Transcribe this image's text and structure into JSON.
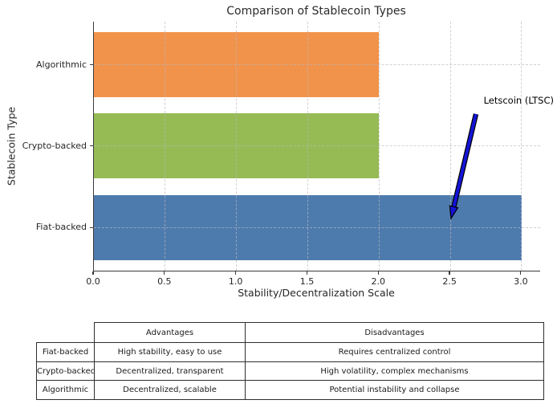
{
  "chart_data": {
    "type": "bar",
    "orientation": "horizontal",
    "title": "Comparison of Stablecoin Types",
    "xlabel": "Stability/Decentralization Scale",
    "ylabel": "Stablecoin Type",
    "categories": [
      "Algorithmic",
      "Crypto-backed",
      "Fiat-backed"
    ],
    "values": [
      2.0,
      2.0,
      3.0
    ],
    "bar_colors": [
      "#F2934C",
      "#96BB55",
      "#4E7BAE"
    ],
    "xlim": [
      0,
      3.13
    ],
    "xticks": [
      0,
      0.5,
      1,
      1.5,
      2,
      2.5,
      3
    ],
    "xtick_labels": [
      "0.0",
      "0.5",
      "1.0",
      "1.5",
      "2.0",
      "2.5",
      "3.0"
    ],
    "grid": true,
    "legend": false,
    "annotation": {
      "text": "Letscoin (LTSC)",
      "target_x": 2.5,
      "target_category": "Fiat-backed",
      "arrow_color": "#1414D6"
    }
  },
  "table": {
    "columns": [
      "Advantages",
      "Disadvantages"
    ],
    "rows": [
      {
        "label": "Fiat-backed",
        "advantages": "High stability, easy to use",
        "disadvantages": "Requires centralized control"
      },
      {
        "label": "Crypto-backed",
        "advantages": "Decentralized, transparent",
        "disadvantages": "High volatility, complex mechanisms"
      },
      {
        "label": "Algorithmic",
        "advantages": "Decentralized, scalable",
        "disadvantages": "Potential instability and collapse"
      }
    ]
  }
}
